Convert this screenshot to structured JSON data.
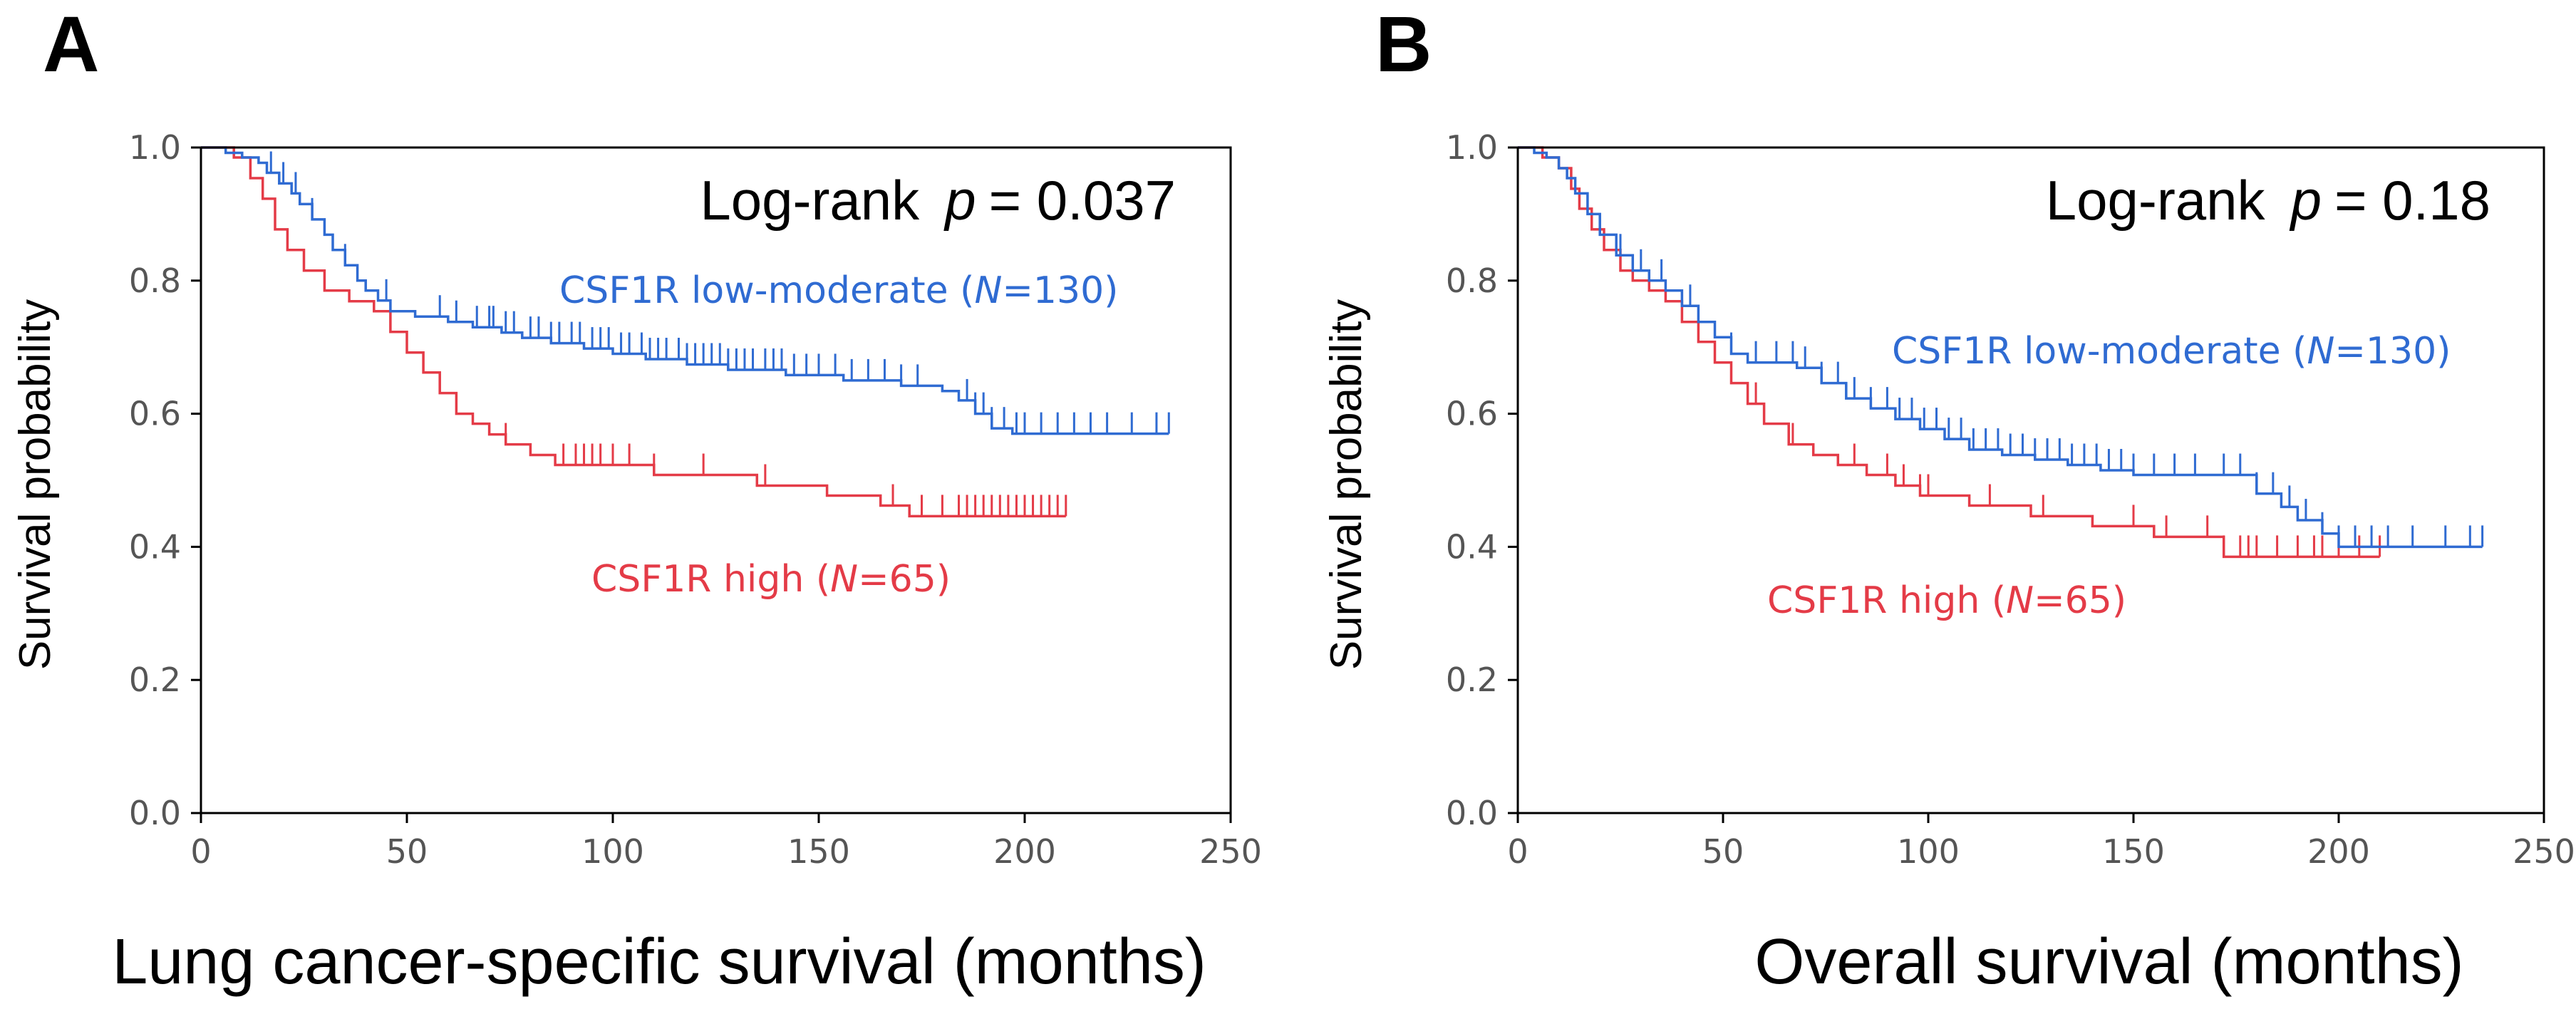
{
  "chart_data": [
    {
      "panel": "A",
      "type": "line",
      "subtype": "kaplan-meier",
      "title": "",
      "xlabel": "Lung cancer-specific survival (months)",
      "ylabel": "Survival probability",
      "xlim": [
        0,
        250
      ],
      "ylim": [
        0,
        1.0
      ],
      "xticks": [
        "0",
        "50",
        "100",
        "150",
        "200",
        "250"
      ],
      "yticks": [
        "0.0",
        "0.2",
        "0.4",
        "0.6",
        "0.8",
        "1.0"
      ],
      "annotation": {
        "prefix": "Log-rank",
        "p_symbol": "p",
        "rest": "= 0.037"
      },
      "series": [
        {
          "name": "CSF1R low-moderate",
          "label_prefix": "CSF1R low-moderate (",
          "label_n": "N",
          "label_suffix": "=130)",
          "color": "#2f6bd2",
          "steps": [
            [
              0,
              1.0
            ],
            [
              6,
              0.992
            ],
            [
              10,
              0.985
            ],
            [
              14,
              0.977
            ],
            [
              16,
              0.962
            ],
            [
              19,
              0.946
            ],
            [
              22,
              0.931
            ],
            [
              24,
              0.915
            ],
            [
              27,
              0.892
            ],
            [
              30,
              0.869
            ],
            [
              32,
              0.846
            ],
            [
              35,
              0.823
            ],
            [
              38,
              0.8
            ],
            [
              40,
              0.785
            ],
            [
              43,
              0.77
            ],
            [
              46,
              0.754
            ],
            [
              52,
              0.746
            ],
            [
              60,
              0.738
            ],
            [
              66,
              0.73
            ],
            [
              73,
              0.722
            ],
            [
              78,
              0.714
            ],
            [
              85,
              0.706
            ],
            [
              93,
              0.698
            ],
            [
              100,
              0.69
            ],
            [
              108,
              0.682
            ],
            [
              118,
              0.674
            ],
            [
              128,
              0.666
            ],
            [
              142,
              0.658
            ],
            [
              156,
              0.65
            ],
            [
              170,
              0.642
            ],
            [
              180,
              0.634
            ],
            [
              184,
              0.62
            ],
            [
              188,
              0.6
            ],
            [
              192,
              0.578
            ],
            [
              197,
              0.57
            ],
            [
              235,
              0.57
            ]
          ],
          "censor": [
            17,
            20,
            23,
            27,
            35,
            45,
            58,
            62,
            67,
            70,
            71,
            74,
            76,
            80,
            82,
            85,
            87,
            90,
            92,
            95,
            97,
            99,
            102,
            104,
            107,
            109,
            111,
            113,
            116,
            118,
            120,
            122,
            124,
            126,
            128,
            130,
            132,
            134,
            137,
            139,
            141,
            144,
            147,
            150,
            154,
            158,
            162,
            166,
            170,
            174,
            186,
            188,
            190,
            192,
            195,
            198,
            200,
            204,
            208,
            212,
            216,
            220,
            226,
            232,
            235
          ]
        },
        {
          "name": "CSF1R high",
          "label_prefix": "CSF1R high (",
          "label_n": "N",
          "label_suffix": "=65)",
          "color": "#e43b47",
          "steps": [
            [
              0,
              1.0
            ],
            [
              8,
              0.985
            ],
            [
              12,
              0.954
            ],
            [
              15,
              0.923
            ],
            [
              18,
              0.877
            ],
            [
              21,
              0.846
            ],
            [
              25,
              0.815
            ],
            [
              30,
              0.785
            ],
            [
              36,
              0.769
            ],
            [
              42,
              0.754
            ],
            [
              46,
              0.723
            ],
            [
              50,
              0.692
            ],
            [
              54,
              0.662
            ],
            [
              58,
              0.631
            ],
            [
              62,
              0.6
            ],
            [
              66,
              0.585
            ],
            [
              70,
              0.569
            ],
            [
              74,
              0.554
            ],
            [
              80,
              0.538
            ],
            [
              86,
              0.523
            ],
            [
              110,
              0.508
            ],
            [
              135,
              0.492
            ],
            [
              152,
              0.477
            ],
            [
              165,
              0.462
            ],
            [
              172,
              0.446
            ],
            [
              180,
              0.446
            ],
            [
              210,
              0.446
            ]
          ],
          "censor": [
            74,
            88,
            91,
            93,
            95,
            97,
            100,
            104,
            110,
            122,
            137,
            168,
            175,
            180,
            184,
            186,
            188,
            190,
            192,
            194,
            196,
            198,
            200,
            202,
            204,
            206,
            208,
            210
          ]
        }
      ]
    },
    {
      "panel": "B",
      "type": "line",
      "subtype": "kaplan-meier",
      "title": "",
      "xlabel": "Overall survival (months)",
      "ylabel": "Survival probability",
      "xlim": [
        0,
        250
      ],
      "ylim": [
        0,
        1.0
      ],
      "xticks": [
        "0",
        "50",
        "100",
        "150",
        "200",
        "250"
      ],
      "yticks": [
        "0.0",
        "0.2",
        "0.4",
        "0.6",
        "0.8",
        "1.0"
      ],
      "annotation": {
        "prefix": "Log-rank",
        "p_symbol": "p",
        "rest": "= 0.18"
      },
      "series": [
        {
          "name": "CSF1R low-moderate",
          "label_prefix": "CSF1R low-moderate (",
          "label_n": "N",
          "label_suffix": "=130)",
          "color": "#2f6bd2",
          "steps": [
            [
              0,
              1.0
            ],
            [
              4,
              0.992
            ],
            [
              7,
              0.985
            ],
            [
              10,
              0.969
            ],
            [
              12,
              0.954
            ],
            [
              14,
              0.931
            ],
            [
              17,
              0.9
            ],
            [
              20,
              0.869
            ],
            [
              24,
              0.838
            ],
            [
              28,
              0.815
            ],
            [
              32,
              0.8
            ],
            [
              36,
              0.785
            ],
            [
              40,
              0.762
            ],
            [
              44,
              0.738
            ],
            [
              48,
              0.715
            ],
            [
              52,
              0.69
            ],
            [
              56,
              0.677
            ],
            [
              68,
              0.669
            ],
            [
              74,
              0.646
            ],
            [
              80,
              0.623
            ],
            [
              86,
              0.608
            ],
            [
              92,
              0.592
            ],
            [
              98,
              0.577
            ],
            [
              104,
              0.562
            ],
            [
              110,
              0.546
            ],
            [
              118,
              0.538
            ],
            [
              126,
              0.531
            ],
            [
              134,
              0.523
            ],
            [
              142,
              0.515
            ],
            [
              150,
              0.508
            ],
            [
              170,
              0.508
            ],
            [
              180,
              0.48
            ],
            [
              186,
              0.46
            ],
            [
              190,
              0.44
            ],
            [
              196,
              0.42
            ],
            [
              200,
              0.4
            ],
            [
              235,
              0.4
            ]
          ],
          "censor": [
            20,
            25,
            30,
            35,
            42,
            52,
            58,
            63,
            67,
            70,
            74,
            78,
            82,
            86,
            90,
            93,
            96,
            99,
            102,
            105,
            108,
            111,
            114,
            117,
            120,
            123,
            126,
            129,
            132,
            135,
            138,
            141,
            144,
            147,
            150,
            155,
            160,
            165,
            172,
            176,
            180,
            184,
            188,
            192,
            196,
            200,
            204,
            208,
            212,
            218,
            226,
            232,
            235
          ]
        },
        {
          "name": "CSF1R high",
          "label_prefix": "CSF1R high (",
          "label_n": "N",
          "label_suffix": "=65)",
          "color": "#e43b47",
          "steps": [
            [
              0,
              1.0
            ],
            [
              6,
              0.985
            ],
            [
              10,
              0.969
            ],
            [
              13,
              0.938
            ],
            [
              15,
              0.908
            ],
            [
              18,
              0.877
            ],
            [
              21,
              0.846
            ],
            [
              25,
              0.815
            ],
            [
              28,
              0.8
            ],
            [
              32,
              0.785
            ],
            [
              36,
              0.769
            ],
            [
              40,
              0.738
            ],
            [
              44,
              0.708
            ],
            [
              48,
              0.677
            ],
            [
              52,
              0.646
            ],
            [
              56,
              0.615
            ],
            [
              60,
              0.585
            ],
            [
              66,
              0.554
            ],
            [
              72,
              0.538
            ],
            [
              78,
              0.523
            ],
            [
              85,
              0.508
            ],
            [
              92,
              0.492
            ],
            [
              98,
              0.477
            ],
            [
              110,
              0.462
            ],
            [
              125,
              0.446
            ],
            [
              140,
              0.431
            ],
            [
              155,
              0.415
            ],
            [
              172,
              0.385
            ],
            [
              210,
              0.385
            ]
          ],
          "censor": [
            58,
            67,
            82,
            90,
            94,
            98,
            100,
            115,
            128,
            150,
            158,
            168,
            172,
            176,
            178,
            180,
            185,
            190,
            194,
            196,
            200,
            205,
            210
          ]
        }
      ]
    }
  ]
}
